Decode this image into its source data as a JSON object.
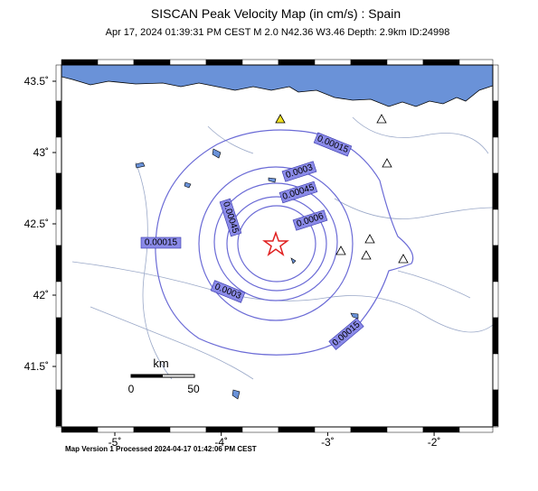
{
  "header": {
    "title": "SISCAN Peak Velocity Map (in cm/s) : Spain",
    "subtitle": "Apr 17, 2024 01:39:31 PM CEST   M 2.0   N42.36 W3.46   Depth: 2.9km   ID:24998"
  },
  "axes": {
    "lon_ticks": [
      {
        "value": -5,
        "label": "-5˚"
      },
      {
        "value": -4,
        "label": "-4˚"
      },
      {
        "value": -3,
        "label": "-3˚"
      },
      {
        "value": -2,
        "label": "-2˚"
      }
    ],
    "lat_ticks": [
      {
        "value": 43.5,
        "label": "43.5˚"
      },
      {
        "value": 43,
        "label": "43˚"
      },
      {
        "value": 42.5,
        "label": "42.5˚"
      },
      {
        "value": 42,
        "label": "42˚"
      },
      {
        "value": 41.5,
        "label": "41.5˚"
      }
    ]
  },
  "contour_labels": [
    "0.00015",
    "0.0003",
    "0.00045",
    "0.0006",
    "0.00045",
    "0.00015",
    "0.0003",
    "0.00015"
  ],
  "scale_bar": {
    "unit": "km",
    "start": "0",
    "end": "50"
  },
  "footer": "Map Version 1 Processed 2024-04-17 01:42:06 PM CEST"
}
